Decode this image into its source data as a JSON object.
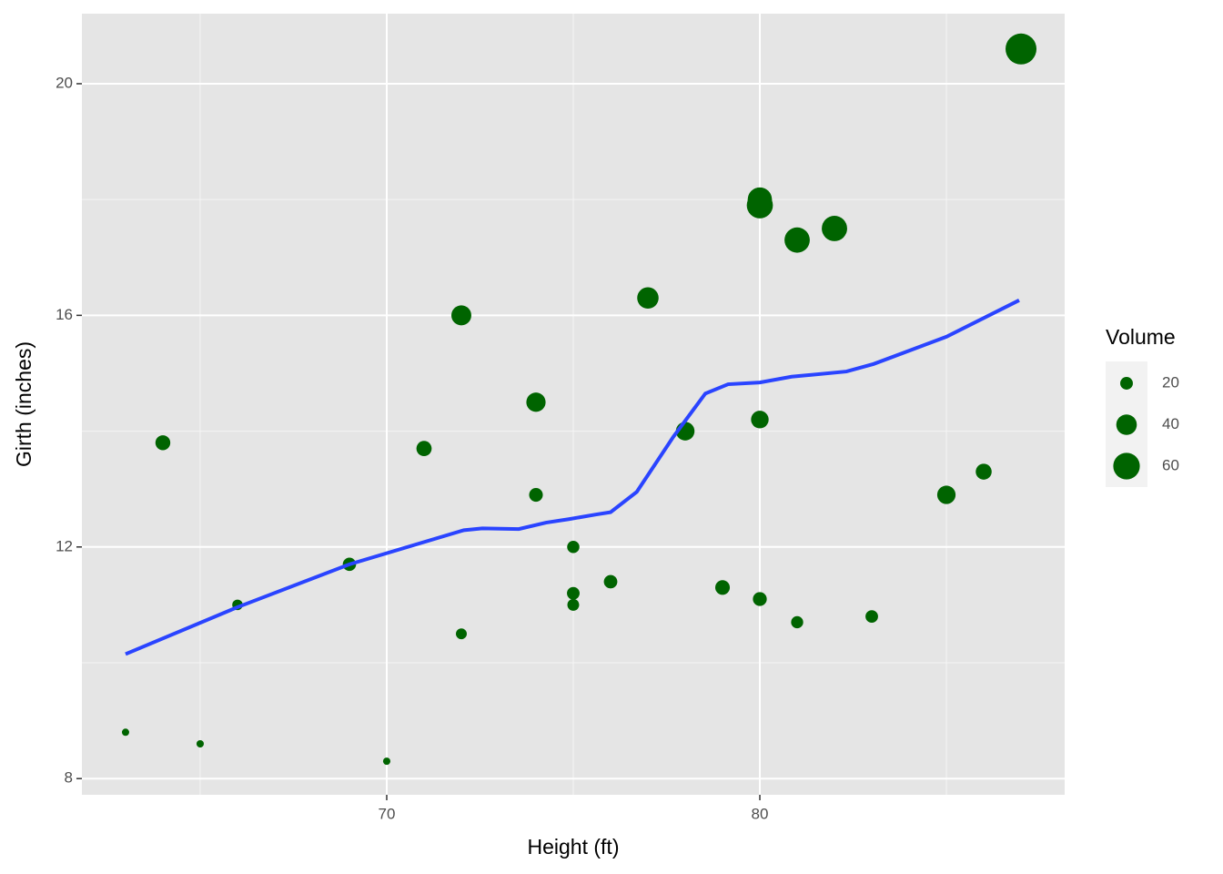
{
  "chart_data": {
    "type": "scatter",
    "x_label": "Height (ft)",
    "y_label": "Girth (inches)",
    "xlim": [
      61.83,
      88.17
    ],
    "ylim": [
      7.72,
      21.21
    ],
    "xticks": [
      70,
      80
    ],
    "yticks": [
      8,
      12,
      16,
      20
    ],
    "minor_xticks": [
      65,
      75,
      85
    ],
    "minor_yticks": [
      10,
      14,
      18
    ],
    "grid": true,
    "series": [
      {
        "name": "Volume",
        "color": "#006400",
        "x": [
          70,
          65,
          63,
          72,
          81,
          83,
          66,
          75,
          80,
          75,
          79,
          76,
          76,
          69,
          75,
          74,
          85,
          86,
          71,
          64,
          78,
          80,
          74,
          72,
          77,
          81,
          82,
          80,
          80,
          80,
          87
        ],
        "values": [
          8.3,
          8.6,
          8.8,
          10.5,
          10.7,
          10.8,
          11.0,
          11.0,
          11.1,
          11.2,
          11.3,
          11.4,
          11.4,
          11.7,
          12.0,
          12.9,
          12.9,
          13.3,
          13.7,
          13.8,
          14.0,
          14.2,
          14.5,
          16.0,
          16.3,
          17.3,
          17.5,
          17.9,
          18.0,
          18.0,
          20.6
        ],
        "sizes": [
          10.3,
          10.3,
          10.2,
          16.4,
          18.8,
          19.7,
          15.6,
          18.2,
          22.6,
          19.9,
          24.2,
          21.0,
          21.4,
          21.3,
          19.1,
          22.2,
          33.8,
          27.4,
          25.7,
          24.9,
          34.5,
          31.7,
          36.3,
          38.3,
          42.6,
          55.4,
          55.7,
          58.3,
          51.5,
          51.0,
          77.0
        ]
      }
    ],
    "smooth": {
      "color": "#2a44ff",
      "x": [
        63.0,
        66.0,
        69.0,
        72.07,
        72.56,
        73.54,
        74.27,
        74.88,
        75.6,
        76.0,
        76.7,
        77.68,
        78.54,
        79.15,
        80.0,
        80.85,
        82.32,
        83.05,
        85.0,
        86.95
      ],
      "values": [
        10.15,
        10.96,
        11.7,
        12.29,
        12.32,
        12.31,
        12.42,
        12.48,
        12.56,
        12.6,
        12.95,
        13.9,
        14.65,
        14.81,
        14.84,
        14.94,
        15.03,
        15.16,
        15.63,
        16.26
      ]
    },
    "size_legend": {
      "title": "Volume",
      "values": [
        20,
        40,
        60
      ]
    }
  }
}
